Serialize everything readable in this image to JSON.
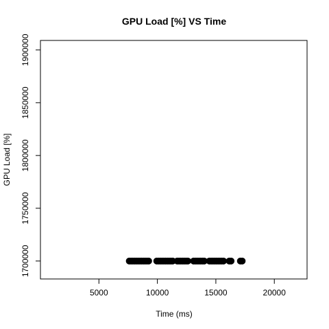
{
  "chart_data": {
    "type": "scatter",
    "title": "GPU Load [%]  VS  Time",
    "xlabel": "Time (ms)",
    "ylabel": "GPU Load [%]",
    "xlim": [
      0,
      22800
    ],
    "ylim": [
      1683000,
      1909000
    ],
    "x_ticks": [
      5000,
      10000,
      15000,
      20000
    ],
    "x_tick_labels": [
      "5000",
      "10000",
      "15000",
      "20000"
    ],
    "y_ticks": [
      1700000,
      1750000,
      1800000,
      1850000,
      1900000
    ],
    "y_tick_labels": [
      "1700000",
      "1750000",
      "1800000",
      "1850000",
      "1900000"
    ],
    "grid": false,
    "point_color": "#000000",
    "points": [
      {
        "x": 7600,
        "y": 1700000
      },
      {
        "x": 7750,
        "y": 1700000
      },
      {
        "x": 7900,
        "y": 1700000
      },
      {
        "x": 8050,
        "y": 1700000
      },
      {
        "x": 8200,
        "y": 1700000
      },
      {
        "x": 8350,
        "y": 1700000
      },
      {
        "x": 8500,
        "y": 1700000
      },
      {
        "x": 8650,
        "y": 1700000
      },
      {
        "x": 8800,
        "y": 1700000
      },
      {
        "x": 8950,
        "y": 1700000
      },
      {
        "x": 9100,
        "y": 1700000
      },
      {
        "x": 9250,
        "y": 1700000
      },
      {
        "x": 9950,
        "y": 1700000
      },
      {
        "x": 10100,
        "y": 1700000
      },
      {
        "x": 10250,
        "y": 1700000
      },
      {
        "x": 10400,
        "y": 1700000
      },
      {
        "x": 10550,
        "y": 1700000
      },
      {
        "x": 10700,
        "y": 1700000
      },
      {
        "x": 10850,
        "y": 1700000
      },
      {
        "x": 11000,
        "y": 1700000
      },
      {
        "x": 11150,
        "y": 1700000
      },
      {
        "x": 11300,
        "y": 1700000
      },
      {
        "x": 11700,
        "y": 1700000
      },
      {
        "x": 11850,
        "y": 1700000
      },
      {
        "x": 12000,
        "y": 1700000
      },
      {
        "x": 12150,
        "y": 1700000
      },
      {
        "x": 12300,
        "y": 1700000
      },
      {
        "x": 12450,
        "y": 1700000
      },
      {
        "x": 12600,
        "y": 1700000
      },
      {
        "x": 13100,
        "y": 1700000
      },
      {
        "x": 13250,
        "y": 1700000
      },
      {
        "x": 13400,
        "y": 1700000
      },
      {
        "x": 13550,
        "y": 1700000
      },
      {
        "x": 13700,
        "y": 1700000
      },
      {
        "x": 13850,
        "y": 1700000
      },
      {
        "x": 14000,
        "y": 1700000
      },
      {
        "x": 14450,
        "y": 1700000
      },
      {
        "x": 14600,
        "y": 1700000
      },
      {
        "x": 14750,
        "y": 1700000
      },
      {
        "x": 14900,
        "y": 1700000
      },
      {
        "x": 15050,
        "y": 1700000
      },
      {
        "x": 15200,
        "y": 1700000
      },
      {
        "x": 15350,
        "y": 1700000
      },
      {
        "x": 15500,
        "y": 1700000
      },
      {
        "x": 15650,
        "y": 1700000
      },
      {
        "x": 16150,
        "y": 1700000
      },
      {
        "x": 16300,
        "y": 1700000
      },
      {
        "x": 17100,
        "y": 1700000
      },
      {
        "x": 17250,
        "y": 1700000
      }
    ]
  }
}
